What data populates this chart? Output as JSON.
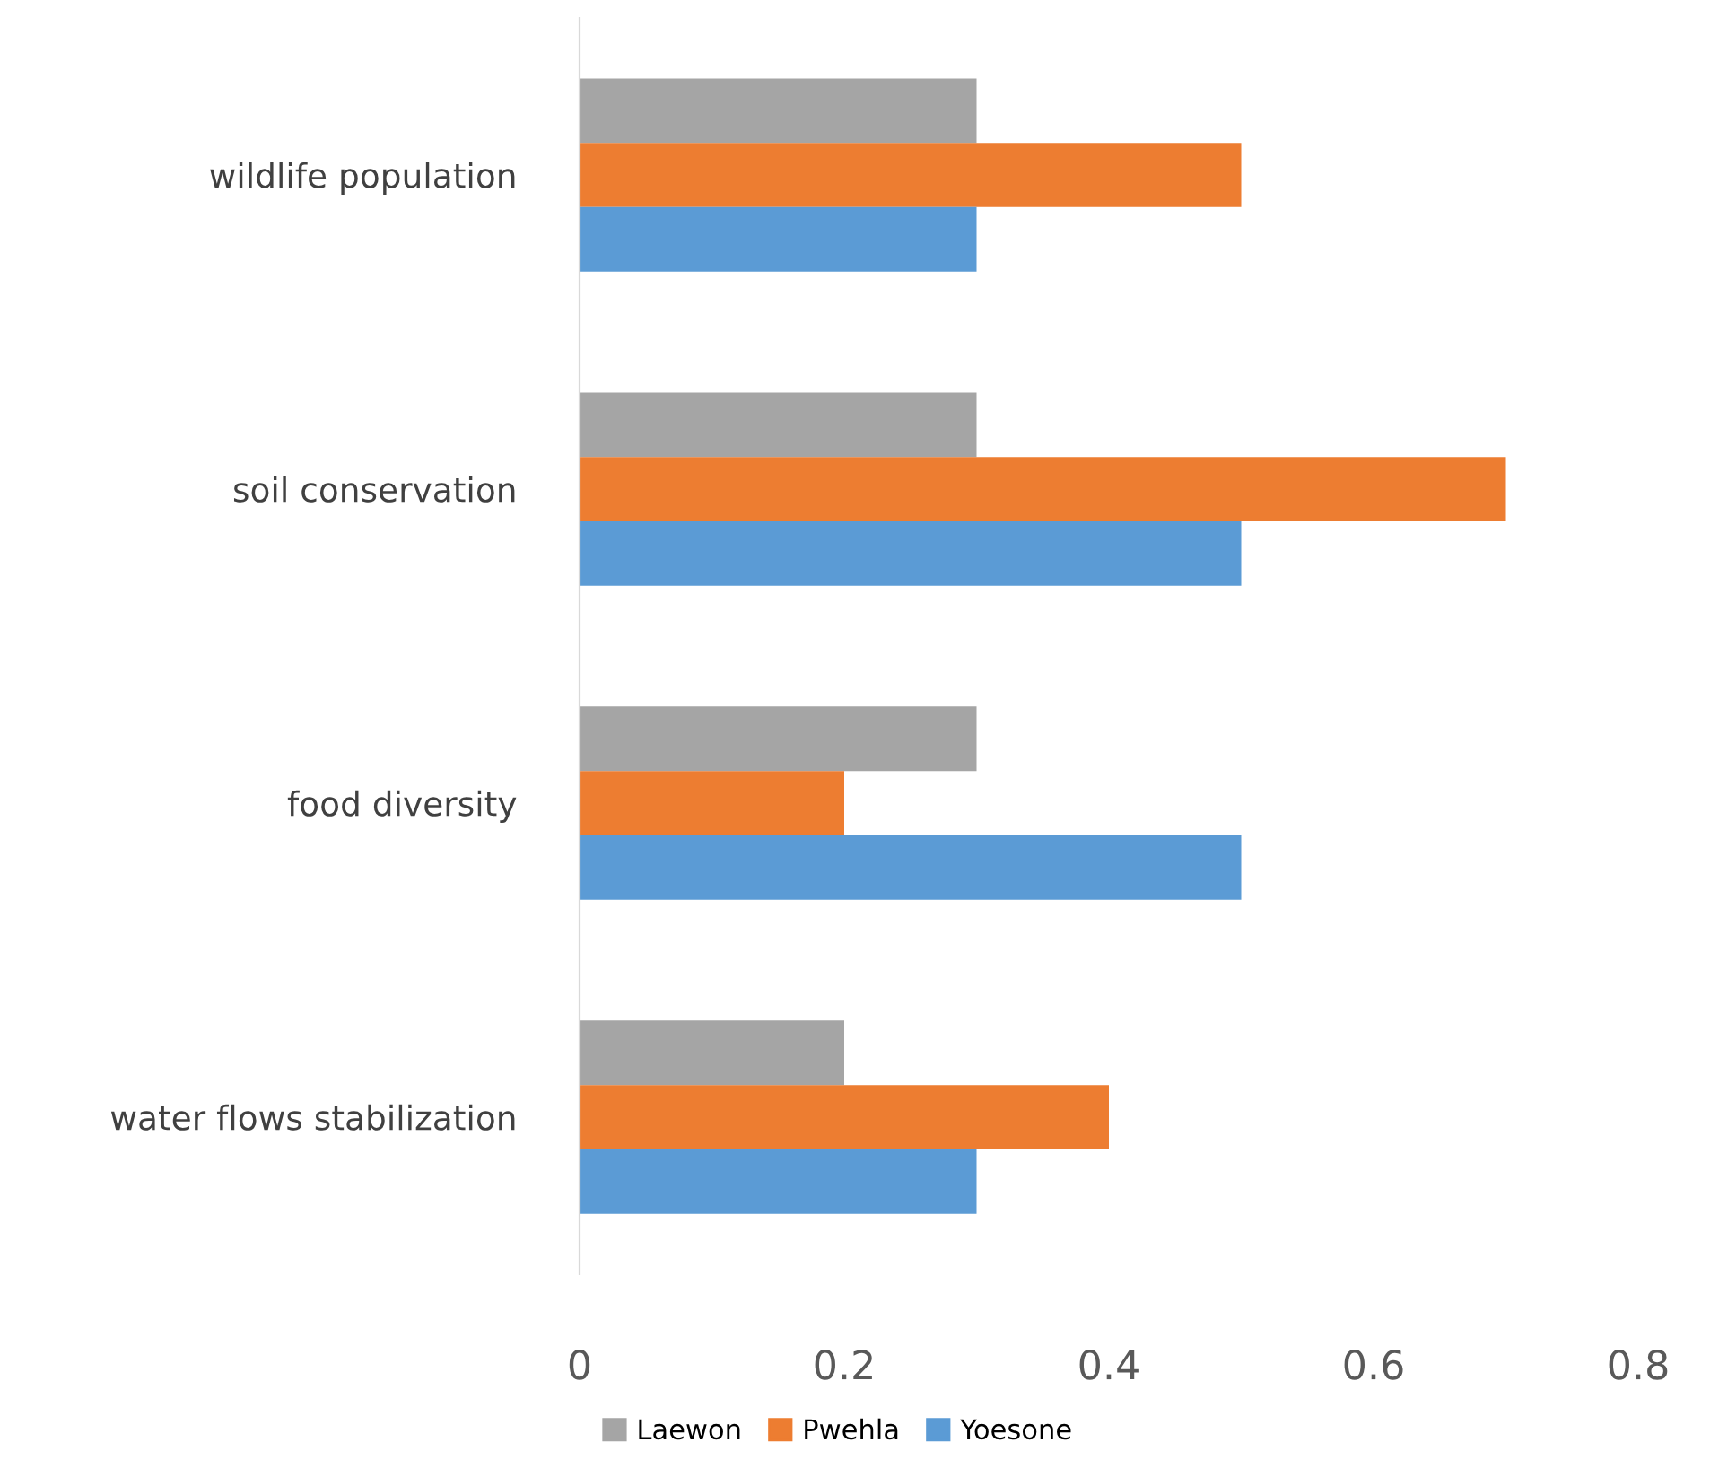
{
  "chart_data": {
    "type": "bar",
    "orientation": "horizontal",
    "categories": [
      "wildlife population",
      "soil conservation",
      "food diversity",
      "water flows stabilization"
    ],
    "series": [
      {
        "name": "Laewon",
        "color": "#a5a5a5",
        "values": [
          0.3,
          0.3,
          0.3,
          0.2
        ]
      },
      {
        "name": "Pwehla",
        "color": "#ed7d31",
        "values": [
          0.5,
          0.7,
          0.2,
          0.4
        ]
      },
      {
        "name": "Yoesone",
        "color": "#5b9bd5",
        "values": [
          0.3,
          0.5,
          0.5,
          0.3
        ]
      }
    ],
    "xlim": [
      0,
      0.8
    ],
    "xticks": [
      0,
      0.2,
      0.4,
      0.6,
      0.8
    ],
    "grid": false,
    "legend": "bottom"
  }
}
